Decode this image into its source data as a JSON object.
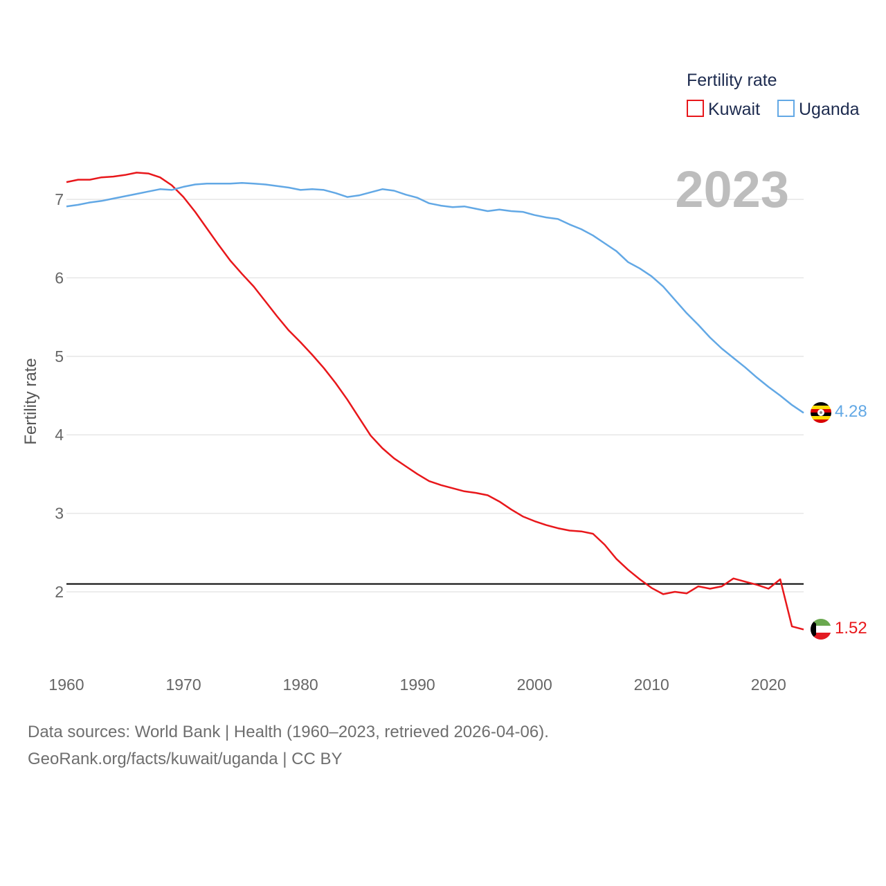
{
  "chart_data": {
    "type": "line",
    "year_label": "2023",
    "ylabel": "Fertility rate",
    "xlabel": "",
    "legend_title": "Fertility rate",
    "legend_position": "top-right",
    "xlim": [
      1960,
      2023
    ],
    "ylim": [
      1.1,
      7.6
    ],
    "x_ticks": [
      1960,
      1970,
      1980,
      1990,
      2000,
      2010,
      2020
    ],
    "y_ticks": [
      2,
      3,
      4,
      5,
      6,
      7
    ],
    "reference_line": {
      "value": 2.1,
      "color": "#000000"
    },
    "x": [
      1960,
      1961,
      1962,
      1963,
      1964,
      1965,
      1966,
      1967,
      1968,
      1969,
      1970,
      1971,
      1972,
      1973,
      1974,
      1975,
      1976,
      1977,
      1978,
      1979,
      1980,
      1981,
      1982,
      1983,
      1984,
      1985,
      1986,
      1987,
      1988,
      1989,
      1990,
      1991,
      1992,
      1993,
      1994,
      1995,
      1996,
      1997,
      1998,
      1999,
      2000,
      2001,
      2002,
      2003,
      2004,
      2005,
      2006,
      2007,
      2008,
      2009,
      2010,
      2011,
      2012,
      2013,
      2014,
      2015,
      2016,
      2017,
      2018,
      2019,
      2020,
      2021,
      2022,
      2023
    ],
    "series": [
      {
        "name": "Kuwait",
        "color": "#e8171b",
        "end_label": "1.52",
        "values": [
          7.22,
          7.25,
          7.25,
          7.28,
          7.29,
          7.31,
          7.34,
          7.33,
          7.28,
          7.18,
          7.03,
          6.84,
          6.63,
          6.42,
          6.22,
          6.05,
          5.89,
          5.7,
          5.51,
          5.33,
          5.18,
          5.02,
          4.85,
          4.66,
          4.45,
          4.22,
          3.99,
          3.83,
          3.7,
          3.6,
          3.5,
          3.41,
          3.36,
          3.32,
          3.28,
          3.26,
          3.23,
          3.15,
          3.05,
          2.96,
          2.9,
          2.85,
          2.81,
          2.78,
          2.77,
          2.74,
          2.6,
          2.42,
          2.28,
          2.16,
          2.05,
          1.97,
          2.0,
          1.98,
          2.07,
          2.04,
          2.07,
          2.17,
          2.13,
          2.09,
          2.04,
          2.16,
          1.56,
          1.52
        ]
      },
      {
        "name": "Uganda",
        "color": "#62a8e5",
        "end_label": "4.28",
        "values": [
          6.91,
          6.93,
          6.96,
          6.98,
          7.01,
          7.04,
          7.07,
          7.1,
          7.13,
          7.12,
          7.16,
          7.19,
          7.2,
          7.2,
          7.2,
          7.21,
          7.2,
          7.19,
          7.17,
          7.15,
          7.12,
          7.13,
          7.12,
          7.08,
          7.03,
          7.05,
          7.09,
          7.13,
          7.11,
          7.06,
          7.02,
          6.95,
          6.92,
          6.9,
          6.91,
          6.88,
          6.85,
          6.87,
          6.85,
          6.84,
          6.8,
          6.77,
          6.75,
          6.68,
          6.62,
          6.54,
          6.44,
          6.34,
          6.2,
          6.12,
          6.02,
          5.89,
          5.72,
          5.55,
          5.4,
          5.24,
          5.1,
          4.98,
          4.86,
          4.73,
          4.61,
          4.5,
          4.38,
          4.28
        ]
      }
    ]
  },
  "footer": {
    "line1": "Data sources: World Bank | Health (1960–2023, retrieved 2026-04-06).",
    "line2": "GeoRank.org/facts/kuwait/uganda | CC BY"
  }
}
